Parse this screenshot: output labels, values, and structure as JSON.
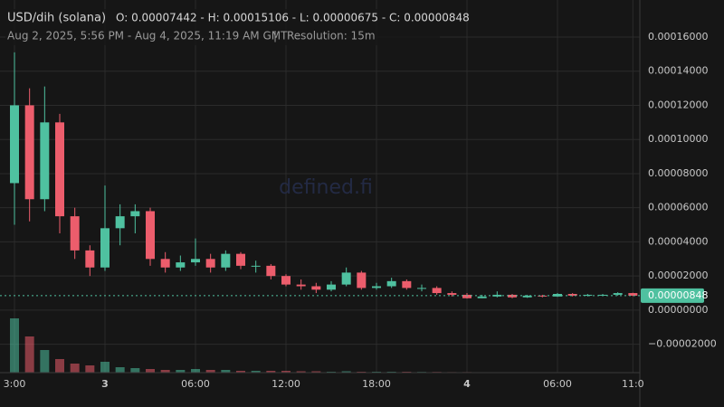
{
  "chart_data": {
    "type": "candlestick",
    "title": "USD/dih (solana)",
    "ohlc_summary": "O: 0.00007442 - H: 0.00015106 - L: 0.00000675 - C: 0.00000848",
    "subtitle": "Aug 2, 2025, 5:56 PM - Aug 4, 2025, 11:19 AM GMT",
    "separator": "|",
    "resolution": "Resolution: 15m",
    "watermark": "defined.fi",
    "up_color": "#4fc1a0",
    "down_color": "#ec5d6c",
    "grid": true,
    "x": [
      -6,
      -5,
      -4,
      -3,
      -2,
      -1,
      0,
      1,
      2,
      3,
      4,
      5,
      6,
      7,
      8,
      9,
      10,
      11,
      12,
      13,
      14,
      15,
      16,
      17,
      18,
      19,
      20,
      21,
      22,
      23,
      24,
      25,
      26,
      27,
      28,
      29,
      30,
      31,
      32,
      33,
      34,
      35
    ],
    "open": [
      7.442e-05,
      0.00012,
      6.5e-05,
      0.00011,
      5.5e-05,
      3.5e-05,
      2.5e-05,
      4.8e-05,
      5.5e-05,
      5.8e-05,
      3e-05,
      2.5e-05,
      2.8e-05,
      3e-05,
      2.5e-05,
      3.3e-05,
      2.6e-05,
      2.6e-05,
      2e-05,
      1.5e-05,
      1.4e-05,
      1.2e-05,
      1.5e-05,
      2.2e-05,
      1.3e-05,
      1.4e-05,
      1.7e-05,
      1.3e-05,
      1.3e-05,
      1e-05,
      9e-06,
      7e-06,
      8e-06,
      9e-06,
      7.5e-06,
      8.5e-06,
      8e-06,
      9.5e-06,
      8.5e-06,
      9e-06,
      9e-06,
      1e-05
    ],
    "high": [
      0.00015106,
      0.00013,
      0.000131,
      0.000115,
      6e-05,
      3.8e-05,
      7.3e-05,
      6.2e-05,
      6.2e-05,
      6e-05,
      3.4e-05,
      3.2e-05,
      4.2e-05,
      3.3e-05,
      3.5e-05,
      3.4e-05,
      2.9e-05,
      2.7e-05,
      2.1e-05,
      1.8e-05,
      1.6e-05,
      1.7e-05,
      2.5e-05,
      2.3e-05,
      1.6e-05,
      1.9e-05,
      1.8e-05,
      1.5e-05,
      1.4e-05,
      1.1e-05,
      1e-05,
      9e-06,
      1.1e-05,
      9.5e-06,
      9e-06,
      9e-06,
      1e-05,
      1e-05,
      9.5e-06,
      9.5e-06,
      1.05e-05,
      1.02e-05
    ],
    "low": [
      5e-05,
      5.2e-05,
      5.8e-05,
      4.5e-05,
      3e-05,
      2e-05,
      2.3e-05,
      3.8e-05,
      4.5e-05,
      2.6e-05,
      2.2e-05,
      2.3e-05,
      2.6e-05,
      2.2e-05,
      2.3e-05,
      2.4e-05,
      2.2e-05,
      1.8e-05,
      1.4e-05,
      1.2e-05,
      1e-05,
      1.1e-05,
      1.4e-05,
      1.2e-05,
      1.2e-05,
      1.3e-05,
      1.2e-05,
      1.1e-05,
      9e-06,
      8e-06,
      6.75e-06,
      7e-06,
      7.5e-06,
      7e-06,
      7.2e-06,
      7.5e-06,
      7.8e-06,
      8e-06,
      8e-06,
      8.5e-06,
      8.5e-06,
      8.2e-06
    ],
    "close": [
      0.00012,
      6.5e-05,
      0.00011,
      5.5e-05,
      3.5e-05,
      2.5e-05,
      4.8e-05,
      5.5e-05,
      5.8e-05,
      3e-05,
      2.5e-05,
      2.8e-05,
      3e-05,
      2.5e-05,
      3.3e-05,
      2.6e-05,
      2.6e-05,
      2e-05,
      1.5e-05,
      1.4e-05,
      1.2e-05,
      1.5e-05,
      2.2e-05,
      1.3e-05,
      1.4e-05,
      1.7e-05,
      1.3e-05,
      1.3e-05,
      1e-05,
      9e-06,
      7e-06,
      8e-06,
      9e-06,
      7.5e-06,
      8.5e-06,
      8e-06,
      9.5e-06,
      8.5e-06,
      9e-06,
      9e-06,
      1e-05,
      8.48e-06
    ],
    "volume": [
      60,
      40,
      25,
      15,
      10,
      8,
      12,
      6,
      5,
      4,
      3,
      3,
      4,
      3,
      3,
      2,
      2,
      2,
      2,
      1.5,
      1.5,
      1,
      1.5,
      1,
      1,
      1,
      1,
      0.8,
      0.8,
      0.6,
      0.6,
      0.5,
      0.5,
      0.4,
      0.4,
      0.4,
      0.3,
      0.3,
      0.3,
      0.3,
      0.3,
      0.3
    ],
    "y2lim": [
      0,
      100
    ],
    "last_price": {
      "value": 8.48e-06,
      "label": "0.00000848"
    },
    "xlim": [
      -6.96,
      35.46
    ],
    "xticks": [
      {
        "value": -6,
        "label": "3:00"
      },
      {
        "value": 0,
        "label": "3"
      },
      {
        "value": 6,
        "label": "06:00"
      },
      {
        "value": 12,
        "label": "12:00"
      },
      {
        "value": 18,
        "label": "18:00"
      },
      {
        "value": 24,
        "label": "4"
      },
      {
        "value": 30,
        "label": "06:00"
      },
      {
        "value": 35,
        "label": "11:0"
      }
    ],
    "ylim": [
      -3.66e-05,
      0.0001817
    ],
    "yticks": [
      {
        "value": 0.00016,
        "label": "0.00016000"
      },
      {
        "value": 0.00014,
        "label": "0.00014000"
      },
      {
        "value": 0.00012,
        "label": "0.00012000"
      },
      {
        "value": 0.0001,
        "label": "0.00010000"
      },
      {
        "value": 8e-05,
        "label": "0.00008000"
      },
      {
        "value": 6e-05,
        "label": "0.00006000"
      },
      {
        "value": 4e-05,
        "label": "0.00004000"
      },
      {
        "value": 2e-05,
        "label": "0.00002000"
      },
      {
        "value": 0,
        "label": "0.00000000"
      },
      {
        "value": -2e-05,
        "label": "−0.00002000"
      }
    ]
  }
}
